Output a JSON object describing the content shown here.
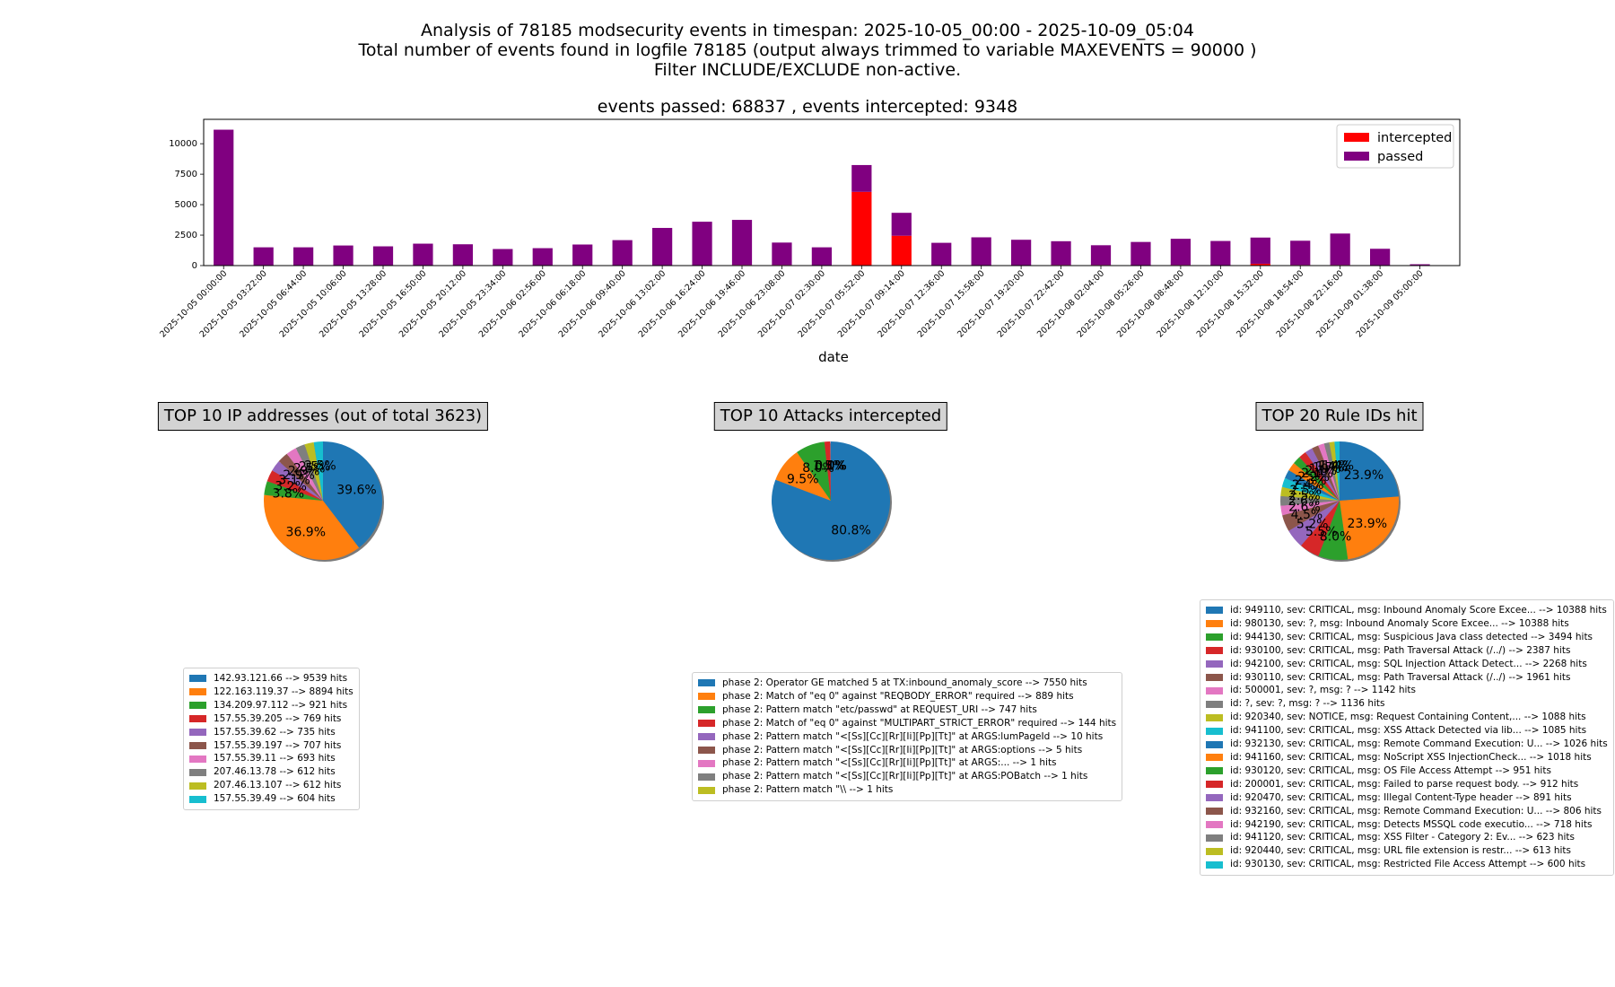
{
  "header": {
    "line1": "Analysis of 78185 modsecurity events in timespan: 2025-10-05_00:00 - 2025-10-09_05:04",
    "line2": "Total number of events found in logfile 78185 (output always trimmed to variable MAXEVENTS = 90000 )",
    "line3": "Filter INCLUDE/EXCLUDE non-active.",
    "line4": "events passed: 68837 , events intercepted: 9348"
  },
  "colors": {
    "intercepted": "#ff0000",
    "passed": "#800080",
    "palette": [
      "#1f77b4",
      "#ff7f0e",
      "#2ca02c",
      "#d62728",
      "#9467bd",
      "#8c564b",
      "#e377c2",
      "#7f7f7f",
      "#bcbd22",
      "#17becf"
    ]
  },
  "chart_data": [
    {
      "type": "bar",
      "stacked": true,
      "title": "events passed: 68837 , events intercepted: 9348",
      "xlabel": "date",
      "ylabel": "",
      "ylim": [
        0,
        12000
      ],
      "yticks": [
        0,
        2500,
        5000,
        7500,
        10000
      ],
      "legend_position": "top-right",
      "categories": [
        "2025-10-05 00:00:00",
        "2025-10-05 03:22:00",
        "2025-10-05 06:44:00",
        "2025-10-05 10:06:00",
        "2025-10-05 13:28:00",
        "2025-10-05 16:50:00",
        "2025-10-05 20:12:00",
        "2025-10-05 23:34:00",
        "2025-10-06 02:56:00",
        "2025-10-06 06:18:00",
        "2025-10-06 09:40:00",
        "2025-10-06 13:02:00",
        "2025-10-06 16:24:00",
        "2025-10-06 19:46:00",
        "2025-10-06 23:08:00",
        "2025-10-07 02:30:00",
        "2025-10-07 05:52:00",
        "2025-10-07 09:14:00",
        "2025-10-07 12:36:00",
        "2025-10-07 15:58:00",
        "2025-10-07 19:20:00",
        "2025-10-07 22:42:00",
        "2025-10-08 02:04:00",
        "2025-10-08 05:26:00",
        "2025-10-08 08:48:00",
        "2025-10-08 12:10:00",
        "2025-10-08 15:32:00",
        "2025-10-08 18:54:00",
        "2025-10-08 22:16:00",
        "2025-10-09 01:38:00",
        "2025-10-09 05:00:00"
      ],
      "series": [
        {
          "name": "intercepted",
          "values": [
            20,
            20,
            20,
            20,
            20,
            20,
            20,
            20,
            20,
            20,
            30,
            30,
            30,
            50,
            50,
            20,
            6050,
            2450,
            20,
            30,
            30,
            50,
            50,
            20,
            50,
            30,
            150,
            50,
            50,
            20,
            10
          ]
        },
        {
          "name": "passed",
          "values": [
            11130,
            1480,
            1480,
            1630,
            1560,
            1780,
            1730,
            1340,
            1410,
            1710,
            2060,
            3060,
            3570,
            3700,
            1840,
            1480,
            2200,
            1880,
            1850,
            2290,
            2090,
            1950,
            1620,
            1920,
            2150,
            1990,
            2150,
            1990,
            2580,
            1360,
            100
          ]
        }
      ]
    },
    {
      "type": "pie",
      "title": "TOP 10 IP addresses (out of total 3623)",
      "labels": [
        "142.93.121.66 --> 9539 hits",
        "122.163.119.37 --> 8894 hits",
        "134.209.97.112 --> 921 hits",
        "157.55.39.205 --> 769 hits",
        "157.55.39.62 --> 735 hits",
        "157.55.39.197 --> 707 hits",
        "157.55.39.11 --> 693 hits",
        "207.46.13.78 --> 612 hits",
        "207.46.13.107 --> 612 hits",
        "157.55.39.49 --> 604 hits"
      ],
      "values": [
        9539,
        8894,
        921,
        769,
        735,
        707,
        693,
        612,
        612,
        604
      ],
      "pct_labels": [
        "39.6%",
        "36.9%",
        "3.8%",
        "3.2%",
        "3.1%",
        "2.9%",
        "2.9%",
        "2.5%",
        "2.5%",
        "2.5%"
      ]
    },
    {
      "type": "pie",
      "title": "TOP 10 Attacks intercepted",
      "labels": [
        "phase 2: Operator GE matched 5 at TX:inbound_anomaly_score --> 7550 hits",
        "phase 2: Match of \"eq 0\" against \"REQBODY_ERROR\" required --> 889 hits",
        "phase 2: Pattern match \"etc/passwd\" at REQUEST_URI --> 747 hits",
        "phase 2: Match of \"eq 0\" against \"MULTIPART_STRICT_ERROR\" required --> 144 hits",
        "phase 2: Pattern match \"<[Ss][Cc][Rr][Ii][Pp][Tt]\" at ARGS:lumPageId --> 10 hits",
        "phase 2: Pattern match \"<[Ss][Cc][Rr][Ii][Pp][Tt]\" at ARGS:options --> 5 hits",
        "phase 2: Pattern match \"<[Ss][Cc][Rr][Ii][Pp][Tt]\" at ARGS:... --> 1 hits",
        "phase 2: Pattern match \"<[Ss][Cc][Rr][Ii][Pp][Tt]\" at ARGS:POBatch --> 1 hits",
        "phase 2: Pattern match \"\\\\ --> 1 hits"
      ],
      "values": [
        7550,
        889,
        747,
        144,
        10,
        5,
        1,
        1,
        1
      ],
      "pct_labels": [
        "80.8%",
        "9.5%",
        "8.0%",
        "1.5%",
        "0.1%",
        "0.1%",
        "0.0%",
        "0.0%",
        "0.0%"
      ]
    },
    {
      "type": "pie",
      "title": "TOP 20 Rule IDs hit",
      "labels": [
        "id: 949110, sev: CRITICAL, msg: Inbound Anomaly Score Excee... --> 10388 hits",
        "id: 980130, sev: ?, msg: Inbound Anomaly Score Excee... --> 10388 hits",
        "id: 944130, sev: CRITICAL, msg: Suspicious Java class detected --> 3494 hits",
        "id: 930100, sev: CRITICAL, msg: Path Traversal Attack (/../) --> 2387 hits",
        "id: 942100, sev: CRITICAL, msg: SQL Injection Attack Detect... --> 2268 hits",
        "id: 930110, sev: CRITICAL, msg: Path Traversal Attack (/../) --> 1961 hits",
        "id: 500001, sev: ?, msg: ? --> 1142 hits",
        "id: ?, sev: ?, msg: ? --> 1136 hits",
        "id: 920340, sev: NOTICE, msg: Request Containing Content,... --> 1088 hits",
        "id: 941100, sev: CRITICAL, msg: XSS Attack Detected via lib... --> 1085 hits",
        "id: 932130, sev: CRITICAL, msg: Remote Command Execution: U... --> 1026 hits",
        "id: 941160, sev: CRITICAL, msg: NoScript XSS InjectionCheck... --> 1018 hits",
        "id: 930120, sev: CRITICAL, msg: OS File Access Attempt --> 951 hits",
        "id: 200001, sev: CRITICAL, msg: Failed to parse request body. --> 912 hits",
        "id: 920470, sev: CRITICAL, msg: Illegal Content-Type header --> 891 hits",
        "id: 932160, sev: CRITICAL, msg: Remote Command Execution: U... --> 806 hits",
        "id: 942190, sev: CRITICAL, msg: Detects MSSQL code executio... --> 718 hits",
        "id: 941120, sev: CRITICAL, msg: XSS Filter - Category 2: Ev... --> 623 hits",
        "id: 920440, sev: CRITICAL, msg: URL file extension is restr... --> 613 hits",
        "id: 930130, sev: CRITICAL, msg: Restricted File Access Attempt --> 600 hits"
      ],
      "values": [
        10388,
        10388,
        3494,
        2387,
        2268,
        1961,
        1142,
        1136,
        1088,
        1085,
        1026,
        1018,
        951,
        912,
        891,
        806,
        718,
        623,
        613,
        600
      ],
      "pct_labels": [
        "23.9%",
        "23.9%",
        "8.0%",
        "5.5%",
        "5.2%",
        "4.5%",
        "2.6%",
        "2.6%",
        "2.5%",
        "2.5%",
        "2.4%",
        "2.3%",
        "2.2%",
        "2.1%",
        "2.1%",
        "1.9%",
        "1.7%",
        "1.4%",
        "1.4%",
        "1.4%"
      ]
    }
  ]
}
